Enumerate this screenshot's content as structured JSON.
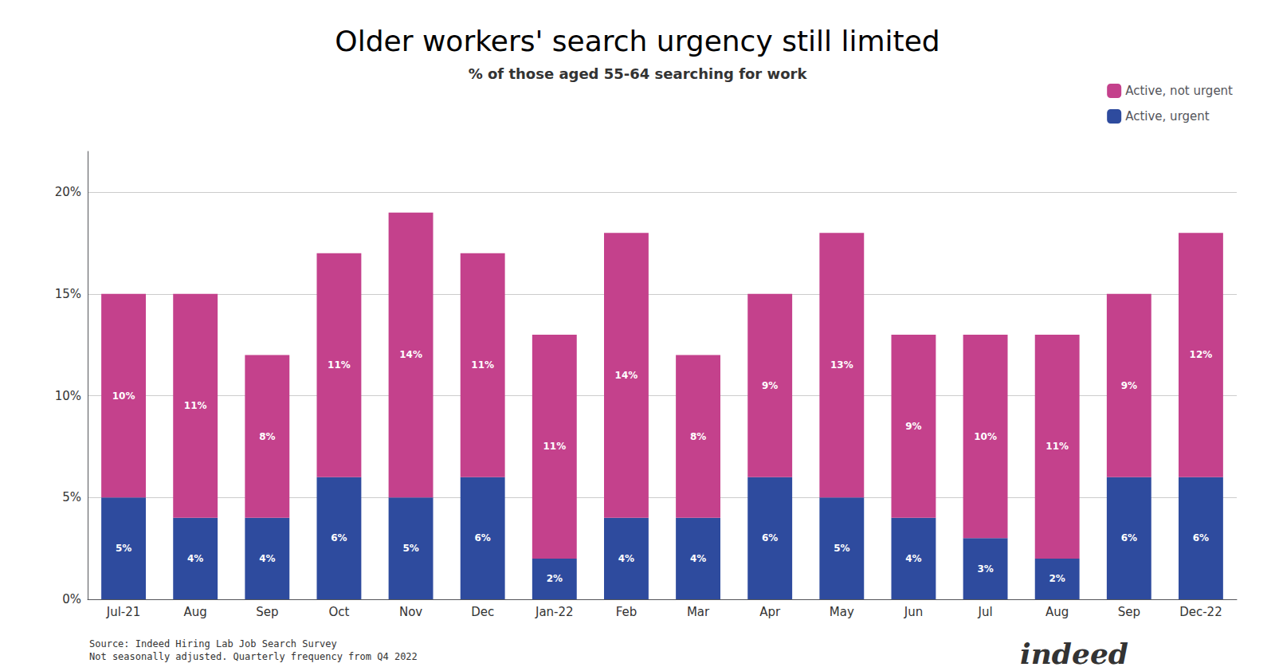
{
  "chart_data": {
    "type": "bar",
    "title": "Older workers' search urgency still limited",
    "subtitle": "% of those aged 55-64 searching for work",
    "categories": [
      "Jul-21",
      "Aug",
      "Sep",
      "Oct",
      "Nov",
      "Dec",
      "Jan-22",
      "Feb",
      "Mar",
      "Apr",
      "May",
      "Jun",
      "Jul",
      "Aug",
      "Sep",
      "Dec-22"
    ],
    "series": [
      {
        "name": "Active, urgent",
        "color": "#2e4b9e",
        "values": [
          5,
          4,
          4,
          6,
          5,
          6,
          2,
          4,
          4,
          6,
          5,
          4,
          3,
          2,
          6,
          6
        ],
        "value_labels": [
          "5%",
          "4%",
          "4%",
          "6%",
          "5%",
          "6%",
          "2%",
          "4%",
          "4%",
          "6%",
          "5%",
          "4%",
          "3%",
          "2%",
          "6%",
          "6%"
        ]
      },
      {
        "name": "Active, not urgent",
        "color": "#c4418c",
        "values": [
          10,
          11,
          8,
          11,
          14,
          11,
          11,
          14,
          8,
          9,
          13,
          9,
          10,
          11,
          9,
          12
        ],
        "value_labels": [
          "10%",
          "11%",
          "8%",
          "11%",
          "14%",
          "11%",
          "11%",
          "14%",
          "8%",
          "9%",
          "13%",
          "9%",
          "10%",
          "11%",
          "9%",
          "12%"
        ]
      }
    ],
    "stacked": true,
    "data_labels": true,
    "ylim": [
      0,
      22
    ],
    "yticks": [
      {
        "value": 0,
        "label": "0%"
      },
      {
        "value": 5,
        "label": "5%"
      },
      {
        "value": 10,
        "label": "10%"
      },
      {
        "value": 15,
        "label": "15%"
      },
      {
        "value": 20,
        "label": "20%"
      }
    ],
    "grid": true,
    "legend": "upper right",
    "annotations": [
      "Source: Indeed Hiring Lab Job Search Survey\nNot seasonally adjusted. Quarterly frequency from Q4 2022",
      "indeed"
    ]
  }
}
